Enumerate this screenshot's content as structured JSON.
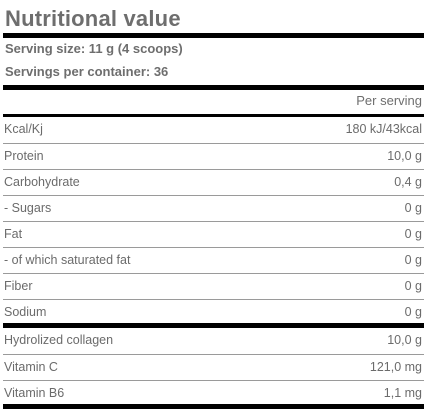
{
  "title": "Nutritional value",
  "serving_size": "Serving size: 11 g (4 scoops)",
  "servings_per_container": "Servings per container: 36",
  "column_header": "Per serving",
  "rows": [
    {
      "label": "Kcal/Kj",
      "value": "180 kJ/43kcal"
    },
    {
      "label": "Protein",
      "value": "10,0 g"
    },
    {
      "label": "Carbohydrate",
      "value": "0,4 g"
    },
    {
      "label": "- Sugars",
      "value": "0 g"
    },
    {
      "label": "Fat",
      "value": "0 g"
    },
    {
      "label": "- of which saturated fat",
      "value": "0 g"
    },
    {
      "label": "Fiber",
      "value": "0 g"
    },
    {
      "label": "Sodium",
      "value": "0 g"
    },
    {
      "label": "Hydrolized collagen",
      "value": "10,0 g"
    },
    {
      "label": "Vitamin C",
      "value": "121,0 mg"
    },
    {
      "label": "Vitamin B6",
      "value": "1,1 mg"
    }
  ]
}
